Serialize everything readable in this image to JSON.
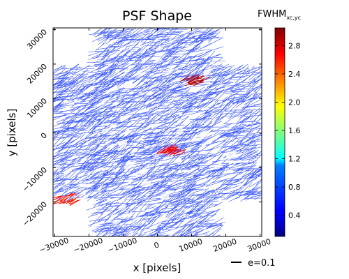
{
  "chart_data": {
    "type": "whisker",
    "title": "PSF Shape",
    "xlabel": "x [pixels]",
    "ylabel": "y [pixels]",
    "xlim": [
      -30500,
      30500
    ],
    "ylim": [
      -30000,
      30500
    ],
    "xticks": [
      -30000,
      -20000,
      -10000,
      0,
      10000,
      20000,
      30000
    ],
    "xtick_labels": [
      "−30000",
      "−20000",
      "−10000",
      "0",
      "10000",
      "20000",
      "30000"
    ],
    "yticks": [
      -20000,
      -10000,
      0,
      10000,
      20000,
      30000
    ],
    "ytick_labels": [
      "−20000",
      "−10000",
      "0",
      "10000",
      "20000",
      "30000"
    ],
    "colorbar": {
      "label_main": "FWHM",
      "label_sub": "xc,yc",
      "colormap": "jet",
      "range": [
        0.1,
        3.05
      ],
      "ticks": [
        0.4,
        0.8,
        1.2,
        1.6,
        2.0,
        2.4,
        2.8
      ],
      "tick_labels": [
        "0.4",
        "0.8",
        "1.2",
        "1.6",
        "2.0",
        "2.4",
        "2.8"
      ]
    },
    "legend": {
      "label": "e=0.1",
      "position": "bottom-right"
    },
    "dominant_color": "#1a3cff",
    "typical_whisker_angle_deg": 25,
    "high_fwhm_regions": [
      {
        "x": 11000,
        "y": 15500,
        "value": 2.9
      },
      {
        "x": 4000,
        "y": -5000,
        "value": 2.7
      },
      {
        "x": -27000,
        "y": -19000,
        "value": 2.6
      }
    ]
  }
}
